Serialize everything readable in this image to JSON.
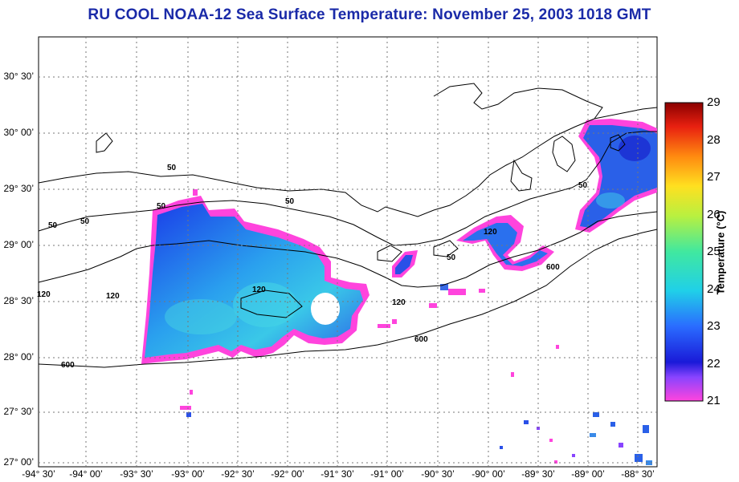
{
  "title": "RU COOL  NOAA-12  Sea Surface Temperature:  November 25, 2003 1018 GMT",
  "map": {
    "lon_range": [
      -94.5,
      -88.0
    ],
    "lat_range": [
      26.95,
      30.83
    ],
    "lat_labels": [
      "30° 30’",
      "30° 00’",
      "29° 30’",
      "29° 00’",
      "28° 30’",
      "28° 00’",
      "27° 30’",
      "27° 00’"
    ],
    "lon_labels": [
      "-94° 30’",
      "-94° 00’",
      "-93° 30’",
      "-93° 00’",
      "-92° 30’",
      "-92° 00’",
      "-91° 30’",
      "-91° 00’",
      "-90° 30’",
      "-90° 00’",
      "-89° 30’",
      "-89° 00’",
      "-88° 30’"
    ],
    "isobath_labels": [
      "50",
      "50",
      "50",
      "50",
      "50",
      "50",
      "50",
      "120",
      "120",
      "120",
      "120",
      "120",
      "600",
      "600",
      "600"
    ],
    "grid": true
  },
  "colorbar": {
    "title": "Temperature (°C)",
    "ticks": [
      "29",
      "28",
      "27",
      "26",
      "25",
      "24",
      "23",
      "22",
      "21"
    ],
    "range": [
      21,
      29
    ]
  }
}
